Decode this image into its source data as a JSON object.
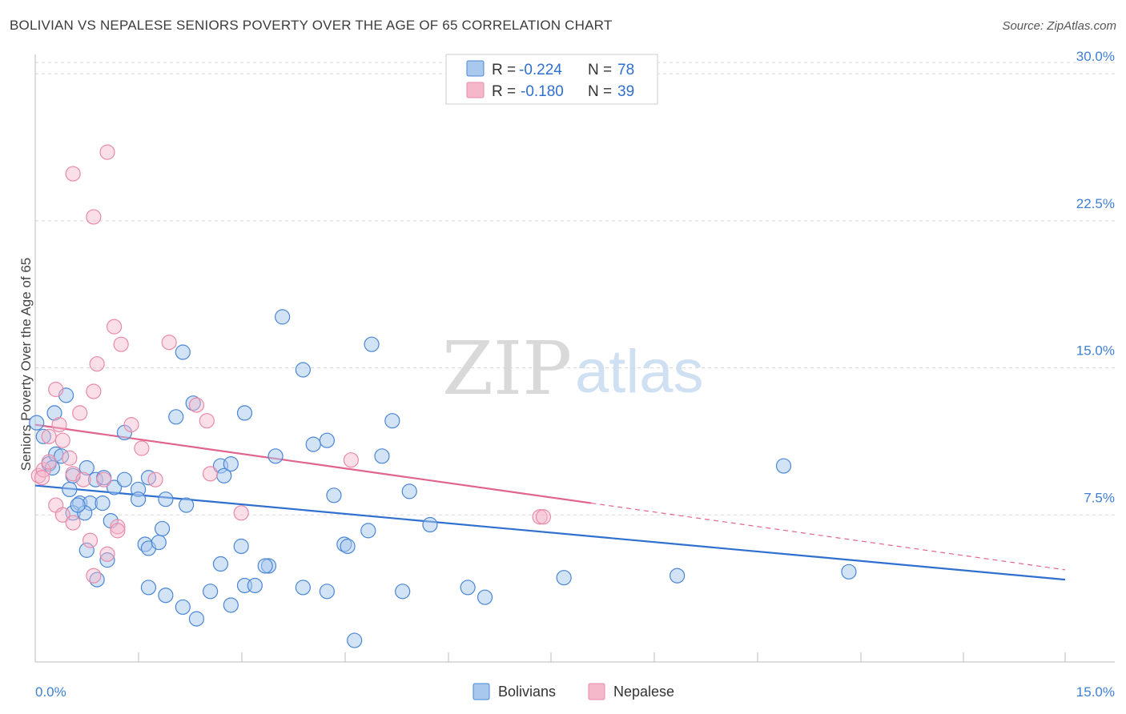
{
  "title": "BOLIVIAN VS NEPALESE SENIORS POVERTY OVER THE AGE OF 65 CORRELATION CHART",
  "source": "Source: ZipAtlas.com",
  "watermark": {
    "zip": "ZIP",
    "atlas": "atlas"
  },
  "legend": {
    "rows": [
      {
        "r_label": "R =",
        "r_value": "-0.224",
        "n_label": "N =",
        "n_value": "78"
      },
      {
        "r_label": "R =",
        "r_value": "-0.180",
        "n_label": "N =",
        "n_value": "39"
      }
    ]
  },
  "bottom_legend": [
    "Bolivians",
    "Nepalese"
  ],
  "colors": {
    "blue_fill": "#a8c8ee",
    "blue_stroke": "#4a86d4",
    "blue_line": "#2f6fd0",
    "pink_fill": "#f5b8cb",
    "pink_stroke": "#e88aa8",
    "pink_line": "#e0648c",
    "grid": "#d8d8d8",
    "tick_label": "#3f7fd0"
  },
  "chart_data": {
    "type": "scatter",
    "xlabel": "",
    "ylabel": "Seniors Poverty Over the Age of 65",
    "xlim": [
      0,
      15
    ],
    "ylim": [
      0,
      30.7
    ],
    "x_tick_labels": [
      "0.0%",
      "15.0%"
    ],
    "y_ticks": [
      7.5,
      15.0,
      22.5,
      30.0
    ],
    "y_tick_labels": [
      "7.5%",
      "15.0%",
      "22.5%",
      "30.0%"
    ],
    "series": [
      {
        "name": "Bolivians",
        "r": -0.224,
        "n": 78,
        "trend": {
          "x0": 0,
          "y0": 9.0,
          "x1": 15,
          "y1": 4.2
        },
        "points": [
          [
            0.02,
            12.2
          ],
          [
            0.12,
            11.5
          ],
          [
            0.28,
            12.7
          ],
          [
            0.45,
            13.6
          ],
          [
            0.2,
            10.1
          ],
          [
            0.3,
            10.6
          ],
          [
            0.38,
            10.5
          ],
          [
            0.25,
            9.9
          ],
          [
            0.55,
            9.5
          ],
          [
            0.75,
            9.9
          ],
          [
            0.88,
            9.3
          ],
          [
            0.5,
            8.8
          ],
          [
            0.65,
            8.1
          ],
          [
            0.8,
            8.1
          ],
          [
            0.55,
            7.6
          ],
          [
            0.72,
            7.6
          ],
          [
            0.62,
            8.0
          ],
          [
            0.98,
            8.1
          ],
          [
            1.0,
            9.4
          ],
          [
            1.1,
            7.2
          ],
          [
            1.15,
            8.9
          ],
          [
            1.3,
            9.3
          ],
          [
            1.3,
            11.7
          ],
          [
            1.5,
            8.8
          ],
          [
            1.5,
            8.3
          ],
          [
            1.6,
            6.0
          ],
          [
            1.65,
            5.8
          ],
          [
            1.65,
            9.4
          ],
          [
            1.8,
            6.1
          ],
          [
            1.85,
            6.8
          ],
          [
            1.9,
            8.3
          ],
          [
            2.05,
            12.5
          ],
          [
            2.15,
            15.8
          ],
          [
            2.2,
            8.0
          ],
          [
            2.3,
            13.2
          ],
          [
            2.7,
            10.0
          ],
          [
            2.75,
            9.5
          ],
          [
            2.85,
            10.1
          ],
          [
            3.0,
            5.9
          ],
          [
            3.05,
            12.7
          ],
          [
            3.4,
            4.9
          ],
          [
            3.5,
            10.5
          ],
          [
            3.6,
            17.6
          ],
          [
            3.9,
            14.9
          ],
          [
            4.05,
            11.1
          ],
          [
            4.25,
            11.3
          ],
          [
            4.35,
            8.5
          ],
          [
            4.5,
            6.0
          ],
          [
            4.55,
            5.9
          ],
          [
            4.9,
            16.2
          ],
          [
            5.05,
            10.5
          ],
          [
            5.2,
            12.3
          ],
          [
            5.45,
            8.7
          ],
          [
            5.75,
            7.0
          ],
          [
            0.75,
            5.7
          ],
          [
            0.9,
            4.2
          ],
          [
            1.05,
            5.2
          ],
          [
            1.65,
            3.8
          ],
          [
            1.9,
            3.4
          ],
          [
            2.15,
            2.8
          ],
          [
            2.35,
            2.2
          ],
          [
            2.55,
            3.6
          ],
          [
            2.7,
            5.0
          ],
          [
            2.85,
            2.9
          ],
          [
            3.05,
            3.9
          ],
          [
            3.2,
            3.9
          ],
          [
            3.35,
            4.9
          ],
          [
            3.9,
            3.8
          ],
          [
            4.25,
            3.6
          ],
          [
            4.65,
            1.1
          ],
          [
            4.85,
            6.7
          ],
          [
            5.35,
            3.6
          ],
          [
            6.3,
            3.8
          ],
          [
            6.55,
            3.3
          ],
          [
            7.7,
            4.3
          ],
          [
            9.35,
            4.4
          ],
          [
            10.9,
            10.0
          ],
          [
            11.85,
            4.6
          ]
        ]
      },
      {
        "name": "Nepalese",
        "r": -0.18,
        "n": 39,
        "trend": {
          "x0": 0,
          "y0": 12.1,
          "x1": 8.1,
          "y1": 8.1
        },
        "trend_dashed": {
          "x0": 8.1,
          "y0": 8.1,
          "x1": 15,
          "y1": 4.7
        },
        "points": [
          [
            0.05,
            9.5
          ],
          [
            0.12,
            9.8
          ],
          [
            0.2,
            10.2
          ],
          [
            0.2,
            11.5
          ],
          [
            0.3,
            13.9
          ],
          [
            0.35,
            12.1
          ],
          [
            0.4,
            11.3
          ],
          [
            0.5,
            10.4
          ],
          [
            0.55,
            9.6
          ],
          [
            0.65,
            12.7
          ],
          [
            0.7,
            9.3
          ],
          [
            0.85,
            13.8
          ],
          [
            0.9,
            15.2
          ],
          [
            1.0,
            9.3
          ],
          [
            1.15,
            17.1
          ],
          [
            1.25,
            16.2
          ],
          [
            1.4,
            12.1
          ],
          [
            1.55,
            10.9
          ],
          [
            1.75,
            9.3
          ],
          [
            1.95,
            16.3
          ],
          [
            2.35,
            13.1
          ],
          [
            2.5,
            12.3
          ],
          [
            2.55,
            9.6
          ],
          [
            3.0,
            7.6
          ],
          [
            4.6,
            10.3
          ],
          [
            0.3,
            8.0
          ],
          [
            0.4,
            7.5
          ],
          [
            0.55,
            7.1
          ],
          [
            0.8,
            6.2
          ],
          [
            0.85,
            4.4
          ],
          [
            1.05,
            5.5
          ],
          [
            1.2,
            6.9
          ],
          [
            1.2,
            6.7
          ],
          [
            0.55,
            24.9
          ],
          [
            0.85,
            22.7
          ],
          [
            1.05,
            26.0
          ],
          [
            7.35,
            7.4
          ],
          [
            7.4,
            7.4
          ],
          [
            0.1,
            9.4
          ]
        ]
      }
    ]
  }
}
